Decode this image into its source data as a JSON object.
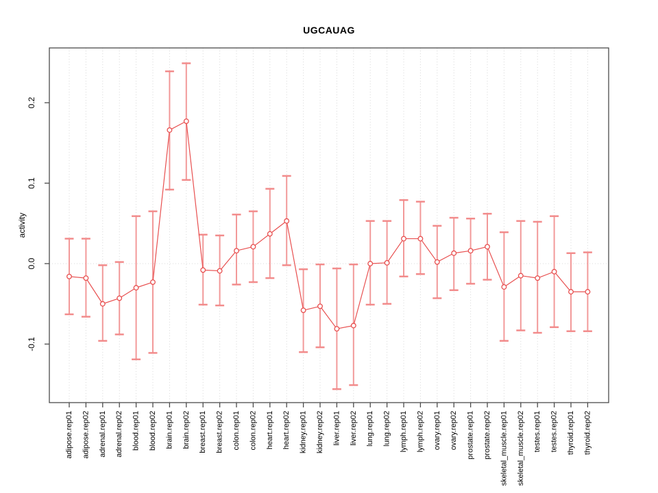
{
  "figure": {
    "title": "UGCAUAG",
    "ylabel": "activity"
  },
  "chart_data": {
    "type": "line",
    "title": "UGCAUAG",
    "xlabel": "",
    "ylabel": "activity",
    "legend": false,
    "marker": "open-circle",
    "error_bars": true,
    "grid": "dotted vertical line per category, dotted horizontal line at y=0",
    "ylim": [
      -0.175,
      0.265
    ],
    "ytick_values": [
      -0.1,
      0.0,
      0.1,
      0.2
    ],
    "ytick_labels": [
      "-0.1",
      "0.0",
      "0.1",
      "0.2"
    ],
    "categories": [
      "adipose.rep01",
      "adipose.rep02",
      "adrenal.rep01",
      "adrenal.rep02",
      "blood.rep01",
      "blood.rep02",
      "brain.rep01",
      "brain.rep02",
      "breast.rep01",
      "breast.rep02",
      "colon.rep01",
      "colon.rep02",
      "heart.rep01",
      "heart.rep02",
      "kidney.rep01",
      "kidney.rep02",
      "liver.rep01",
      "liver.rep02",
      "lung.rep01",
      "lung.rep02",
      "lymph.rep01",
      "lymph.rep02",
      "ovary.rep01",
      "ovary.rep02",
      "prostate.rep01",
      "prostate.rep02",
      "skeletal_muscle.rep01",
      "skeletal_muscle.rep02",
      "testes.rep01",
      "testes.rep02",
      "thyroid.rep01",
      "thyroid.rep02"
    ],
    "series": [
      {
        "name": "activity",
        "values": [
          -0.016,
          -0.018,
          -0.05,
          -0.043,
          -0.03,
          -0.023,
          0.166,
          0.177,
          -0.008,
          -0.009,
          0.016,
          0.021,
          0.037,
          0.053,
          -0.058,
          -0.053,
          -0.081,
          -0.077,
          0.0,
          0.001,
          0.031,
          0.031,
          0.002,
          0.013,
          0.016,
          0.021,
          -0.029,
          -0.015,
          -0.018,
          -0.01,
          -0.035,
          -0.035
        ],
        "ci_low": [
          -0.063,
          -0.066,
          -0.096,
          -0.088,
          -0.119,
          -0.111,
          0.092,
          0.104,
          -0.051,
          -0.052,
          -0.026,
          -0.023,
          -0.018,
          -0.002,
          -0.11,
          -0.104,
          -0.156,
          -0.151,
          -0.051,
          -0.05,
          -0.016,
          -0.013,
          -0.043,
          -0.033,
          -0.025,
          -0.02,
          -0.096,
          -0.083,
          -0.086,
          -0.079,
          -0.084,
          -0.084
        ],
        "ci_high": [
          0.031,
          0.031,
          -0.002,
          0.002,
          0.059,
          0.065,
          0.239,
          0.249,
          0.036,
          0.035,
          0.061,
          0.065,
          0.093,
          0.109,
          -0.007,
          -0.001,
          -0.006,
          -0.001,
          0.053,
          0.053,
          0.079,
          0.077,
          0.047,
          0.057,
          0.056,
          0.062,
          0.039,
          0.053,
          0.052,
          0.059,
          0.013,
          0.014
        ]
      }
    ],
    "colors": {
      "line": "#e84f4f",
      "marker_stroke": "#e84f4f",
      "error_bar": "#f29999",
      "error_bar_cap": "#f28b8b",
      "grid": "#d9d9d9",
      "axis": "#4a4a4a",
      "text": "#000000",
      "background": "#ffffff"
    }
  }
}
